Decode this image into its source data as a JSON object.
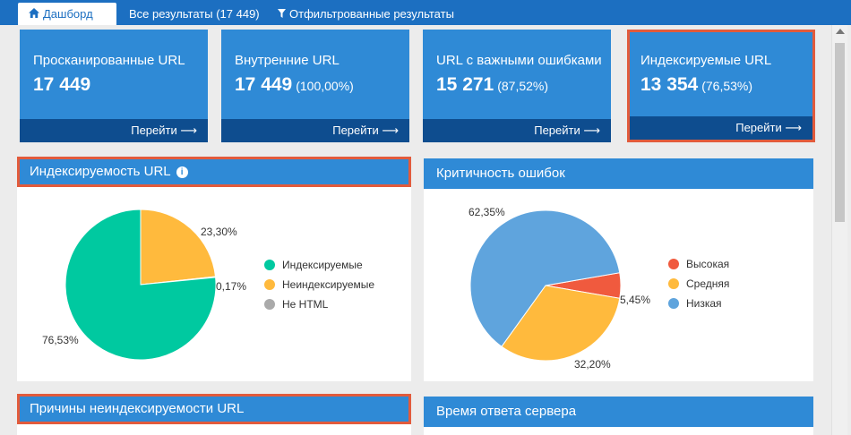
{
  "tabs": [
    {
      "label": "Дашборд",
      "icon": "home-icon"
    },
    {
      "label": "Все результаты (17 449)"
    },
    {
      "label": "Отфильтрованные результаты",
      "icon": "filter-icon"
    }
  ],
  "cards": [
    {
      "title": "Просканированные URL",
      "value": "17 449",
      "pct": "",
      "go": "Перейти"
    },
    {
      "title": "Внутренние URL",
      "value": "17 449",
      "pct": "(100,00%)",
      "go": "Перейти"
    },
    {
      "title": "URL с важными ошибками",
      "value": "15 271",
      "pct": "(87,52%)",
      "go": "Перейти"
    },
    {
      "title": "Индексируемые URL",
      "value": "13 354",
      "pct": "(76,53%)",
      "go": "Перейти"
    }
  ],
  "panels": {
    "indexability": {
      "title": "Индексируемость URL",
      "info": "i"
    },
    "severity": {
      "title": "Критичность ошибок"
    },
    "reasons": {
      "title": "Причины неиндексируемости URL"
    },
    "response": {
      "title": "Время ответа сервера"
    }
  },
  "chart_data": [
    {
      "type": "pie",
      "title": "Индексируемость URL",
      "labels": [
        "Индексируемые",
        "Неиндексируемые",
        "Не HTML"
      ],
      "values": [
        76.53,
        23.3,
        0.17
      ],
      "value_labels": [
        "76,53%",
        "23,30%",
        "0,17%"
      ],
      "colors": [
        "#00c9a0",
        "#ffba3d",
        "#aaaaaa"
      ],
      "legend": "right"
    },
    {
      "type": "pie",
      "title": "Критичность ошибок",
      "labels": [
        "Высокая",
        "Средняя",
        "Низкая"
      ],
      "values": [
        5.45,
        32.2,
        62.35
      ],
      "value_labels": [
        "5,45%",
        "32,20%",
        "62,35%"
      ],
      "colors": [
        "#f05a3e",
        "#ffba3d",
        "#5fa4dd"
      ],
      "legend": "right"
    }
  ]
}
